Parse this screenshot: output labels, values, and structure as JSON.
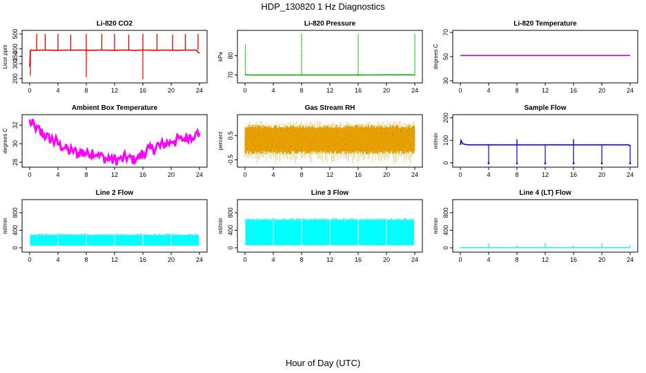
{
  "figure": {
    "title": "HDP_130820 1 Hz Diagnostics",
    "xlabel": "Hour of Day (UTC)"
  },
  "chart_data": [
    {
      "id": "co2",
      "type": "line",
      "title": "Li-820 CO2",
      "ylabel": "Licor ppm",
      "color": "#e00000",
      "xlim": [
        0,
        24
      ],
      "xticks": [
        0,
        4,
        8,
        12,
        16,
        20,
        24
      ],
      "ylim": [
        185,
        510
      ],
      "yticks": [
        200,
        300,
        350,
        400,
        500
      ],
      "series": [
        {
          "name": "co2",
          "x": [
            0.0,
            0.1,
            0.2,
            0.5,
            1,
            2,
            3,
            4,
            5,
            6,
            7,
            8,
            9,
            10,
            11,
            12,
            13,
            14,
            15,
            16,
            17,
            18,
            19,
            20,
            21,
            22,
            23,
            23.5,
            24
          ],
          "y": [
            280,
            390,
            392,
            390,
            391,
            392,
            391,
            390,
            392,
            391,
            392,
            391,
            390,
            392,
            391,
            390,
            392,
            391,
            390,
            392,
            391,
            390,
            392,
            391,
            390,
            392,
            391,
            392,
            370
          ]
        }
      ],
      "spikes_up": {
        "x": [
          1.0,
          2.2,
          4.0,
          5.8,
          8.0,
          10.2,
          12.0,
          14.0,
          16.0,
          18.0,
          20.2,
          22.0,
          23.8
        ],
        "y": [
          500,
          500,
          500,
          495,
          500,
          500,
          500,
          495,
          500,
          500,
          495,
          500,
          500
        ]
      },
      "spikes_down": {
        "x": [
          0.1,
          8.0,
          16.0
        ],
        "y": [
          220,
          210,
          195
        ]
      }
    },
    {
      "id": "pressure",
      "type": "line",
      "title": "Li-820 Pressure",
      "ylabel": "kPa",
      "color": "#00b000",
      "xlim": [
        0,
        24
      ],
      "xticks": [
        0,
        4,
        8,
        12,
        16,
        20,
        24
      ],
      "ylim": [
        67,
        92
      ],
      "yticks": [
        70,
        80
      ],
      "series": [
        {
          "name": "pressure",
          "x": [
            0,
            0.3,
            1,
            4,
            8,
            12,
            16,
            20,
            23.5,
            24
          ],
          "y": [
            70.2,
            70.1,
            70.0,
            70.0,
            70.0,
            70.0,
            70.0,
            70.1,
            70.1,
            70.0
          ]
        }
      ],
      "spikes_up": {
        "x": [
          0.05,
          8.0,
          16.0,
          24.0
        ],
        "y": [
          86,
          91,
          91,
          91
        ]
      }
    },
    {
      "id": "licor-temp",
      "type": "line",
      "title": "Li-820 Temperature",
      "ylabel": "degrees C",
      "color": "#cc00cc",
      "xlim": [
        0,
        24
      ],
      "xticks": [
        0,
        4,
        8,
        12,
        16,
        20,
        24
      ],
      "ylim": [
        30,
        70
      ],
      "yticks": [
        30,
        50,
        70
      ],
      "series": [
        {
          "name": "temperature",
          "x": [
            0,
            24
          ],
          "y": [
            51,
            51
          ]
        }
      ]
    },
    {
      "id": "ambient-temp",
      "type": "line",
      "title": "Ambient Box Temperature",
      "ylabel": "degrees C",
      "color": "#ff00ff",
      "xlim": [
        0,
        24
      ],
      "xticks": [
        0,
        4,
        8,
        12,
        16,
        20,
        24
      ],
      "ylim": [
        27.7,
        32.9
      ],
      "yticks": [
        28,
        30,
        32
      ],
      "band": 0.55,
      "series": [
        {
          "name": "temperature",
          "x": [
            0,
            1,
            2,
            3,
            4,
            5,
            6,
            7,
            8,
            9,
            10,
            11,
            12,
            13,
            14,
            15,
            16,
            17,
            18,
            19,
            20,
            21,
            22,
            23,
            24
          ],
          "y": [
            32.3,
            31.6,
            31.0,
            30.5,
            30.0,
            29.5,
            29.2,
            29.0,
            29.1,
            29.1,
            28.7,
            28.4,
            28.3,
            28.4,
            28.4,
            28.3,
            28.9,
            29.4,
            29.7,
            30.0,
            30.2,
            30.4,
            30.7,
            30.9,
            31.0
          ]
        }
      ]
    },
    {
      "id": "gas-rh",
      "type": "line",
      "title": "Gas Stream RH",
      "ylabel": "percent",
      "color": "#e6a000",
      "xlim": [
        0,
        24
      ],
      "xticks": [
        0,
        4,
        8,
        12,
        16,
        20,
        24
      ],
      "ylim": [
        -0.72,
        1.28
      ],
      "yticks": [
        -0.5,
        0.5
      ],
      "band_low": -0.2,
      "band_high": 0.95,
      "extreme_low": -0.65,
      "extreme_high": 1.12
    },
    {
      "id": "sample-flow",
      "type": "line",
      "title": "Sample Flow",
      "ylabel": "ml/min",
      "color": "#0000dd",
      "xlim": [
        0,
        24
      ],
      "xticks": [
        0,
        4,
        8,
        12,
        16,
        20,
        24
      ],
      "ylim": [
        -10,
        205
      ],
      "yticks": [
        0,
        100,
        200
      ],
      "series": [
        {
          "name": "flow",
          "x": [
            0,
            0.1,
            0.3,
            1,
            4,
            8,
            12,
            16,
            20,
            23.8,
            24
          ],
          "y": [
            80,
            100,
            85,
            80,
            80,
            80,
            80,
            80,
            80,
            80,
            75
          ]
        }
      ],
      "dips": {
        "x": [
          4.0,
          8.0,
          12.0,
          16.0,
          20.0,
          24.0
        ],
        "y": [
          -2,
          -2,
          -2,
          -2,
          -2,
          -2
        ]
      },
      "peaks": {
        "x": [
          8.0,
          16.0
        ],
        "y": [
          105,
          105
        ]
      }
    },
    {
      "id": "line2-flow",
      "type": "area",
      "title": "Line 2 Flow",
      "ylabel": "ml/min",
      "color": "#00ffff",
      "xlim": [
        0,
        24
      ],
      "xticks": [
        0,
        4,
        8,
        12,
        16,
        20,
        24
      ],
      "ylim": [
        -50,
        1050
      ],
      "yticks": [
        0,
        400,
        800
      ],
      "band_low": 50,
      "band_high": 280,
      "gaps": [
        4,
        8,
        12,
        16,
        20
      ]
    },
    {
      "id": "line3-flow",
      "type": "area",
      "title": "Line 3 Flow",
      "ylabel": "ml/min",
      "color": "#00ffff",
      "xlim": [
        0,
        24
      ],
      "xticks": [
        0,
        4,
        8,
        12,
        16,
        20,
        24
      ],
      "ylim": [
        -50,
        1050
      ],
      "yticks": [
        0,
        400,
        800
      ],
      "band_low": 60,
      "band_high": 630,
      "gaps": [
        4,
        8,
        12,
        16,
        20
      ]
    },
    {
      "id": "line4-flow",
      "type": "line",
      "title": "Line 4 (LT) Flow",
      "ylabel": "ml/min",
      "color": "#00ffff",
      "xlim": [
        0,
        24
      ],
      "xticks": [
        0,
        4,
        8,
        12,
        16,
        20,
        24
      ],
      "ylim": [
        -50,
        1050
      ],
      "yticks": [
        0,
        400,
        800
      ],
      "series": [
        {
          "name": "flow",
          "x": [
            0,
            24
          ],
          "y": [
            5,
            5
          ]
        }
      ],
      "spikes_up": {
        "x": [
          4.0,
          8.0,
          12.0,
          16.0,
          20.0,
          24.0
        ],
        "y": [
          110,
          55,
          110,
          55,
          110,
          55
        ]
      }
    }
  ]
}
